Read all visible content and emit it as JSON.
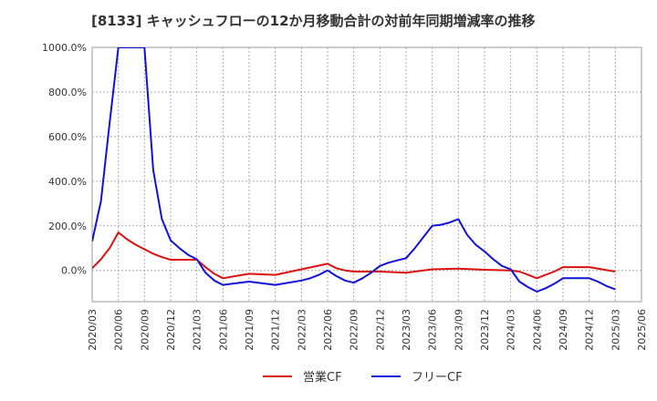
{
  "chart_data": {
    "type": "line",
    "title": "[8133]  キャッシュフローの12か月移動合計の対前年同期増減率の推移",
    "xlabel": "",
    "ylabel": "",
    "ylim": [
      -140,
      1000
    ],
    "ytick_values": [
      0,
      200,
      400,
      600,
      800,
      1000
    ],
    "ytick_labels": [
      "0.0%",
      "200.0%",
      "400.0%",
      "600.0%",
      "800.0%",
      "1000.0%"
    ],
    "x_start": "2020/03",
    "x_end": "2025/06",
    "xtick_labels": [
      "2020/03",
      "2020/06",
      "2020/09",
      "2020/12",
      "2021/03",
      "2021/06",
      "2021/09",
      "2021/12",
      "2022/03",
      "2022/06",
      "2022/09",
      "2022/12",
      "2023/03",
      "2023/06",
      "2023/09",
      "2023/12",
      "2024/03",
      "2024/06",
      "2024/09",
      "2024/12",
      "2025/03",
      "2025/06"
    ],
    "grid": true,
    "series": [
      {
        "name": "営業CF",
        "color": "#dd1111",
        "points": [
          [
            "2020/03",
            10
          ],
          [
            "2020/04",
            50
          ],
          [
            "2020/05",
            100
          ],
          [
            "2020/06",
            170
          ],
          [
            "2020/07",
            140
          ],
          [
            "2020/08",
            115
          ],
          [
            "2020/09",
            95
          ],
          [
            "2020/10",
            75
          ],
          [
            "2020/11",
            60
          ],
          [
            "2020/12",
            48
          ],
          [
            "2021/03",
            48
          ],
          [
            "2021/04",
            15
          ],
          [
            "2021/05",
            -15
          ],
          [
            "2021/06",
            -35
          ],
          [
            "2021/09",
            -15
          ],
          [
            "2021/12",
            -20
          ],
          [
            "2022/03",
            5
          ],
          [
            "2022/06",
            30
          ],
          [
            "2022/07",
            10
          ],
          [
            "2022/08",
            0
          ],
          [
            "2022/09",
            -5
          ],
          [
            "2022/12",
            -5
          ],
          [
            "2023/03",
            -10
          ],
          [
            "2023/06",
            5
          ],
          [
            "2023/09",
            8
          ],
          [
            "2023/12",
            3
          ],
          [
            "2024/03",
            0
          ],
          [
            "2024/04",
            -5
          ],
          [
            "2024/05",
            -20
          ],
          [
            "2024/06",
            -35
          ],
          [
            "2024/07",
            -20
          ],
          [
            "2024/08",
            -5
          ],
          [
            "2024/09",
            15
          ],
          [
            "2024/12",
            15
          ],
          [
            "2025/03",
            -5
          ]
        ]
      },
      {
        "name": "フリーCF",
        "color": "#1111dd",
        "points": [
          [
            "2020/03",
            130
          ],
          [
            "2020/04",
            310
          ],
          [
            "2020/05",
            660
          ],
          [
            "2020/06",
            1000
          ],
          [
            "2020/08",
            1000
          ],
          [
            "2020/09",
            1000
          ],
          [
            "2020/10",
            450
          ],
          [
            "2020/11",
            230
          ],
          [
            "2020/12",
            135
          ],
          [
            "2021/01",
            100
          ],
          [
            "2021/02",
            70
          ],
          [
            "2021/03",
            50
          ],
          [
            "2021/04",
            -10
          ],
          [
            "2021/05",
            -45
          ],
          [
            "2021/06",
            -65
          ],
          [
            "2021/09",
            -50
          ],
          [
            "2021/12",
            -65
          ],
          [
            "2022/03",
            -45
          ],
          [
            "2022/04",
            -35
          ],
          [
            "2022/05",
            -20
          ],
          [
            "2022/06",
            0
          ],
          [
            "2022/07",
            -25
          ],
          [
            "2022/08",
            -45
          ],
          [
            "2022/09",
            -55
          ],
          [
            "2022/10",
            -35
          ],
          [
            "2022/11",
            -10
          ],
          [
            "2022/12",
            20
          ],
          [
            "2023/01",
            35
          ],
          [
            "2023/02",
            45
          ],
          [
            "2023/03",
            55
          ],
          [
            "2023/04",
            100
          ],
          [
            "2023/05",
            150
          ],
          [
            "2023/06",
            200
          ],
          [
            "2023/07",
            205
          ],
          [
            "2023/08",
            215
          ],
          [
            "2023/09",
            230
          ],
          [
            "2023/10",
            160
          ],
          [
            "2023/11",
            115
          ],
          [
            "2023/12",
            85
          ],
          [
            "2024/01",
            50
          ],
          [
            "2024/02",
            20
          ],
          [
            "2024/03",
            5
          ],
          [
            "2024/04",
            -50
          ],
          [
            "2024/05",
            -75
          ],
          [
            "2024/06",
            -95
          ],
          [
            "2024/07",
            -80
          ],
          [
            "2024/08",
            -60
          ],
          [
            "2024/09",
            -35
          ],
          [
            "2024/12",
            -35
          ],
          [
            "2025/01",
            -50
          ],
          [
            "2025/02",
            -70
          ],
          [
            "2025/03",
            -85
          ]
        ]
      }
    ]
  }
}
